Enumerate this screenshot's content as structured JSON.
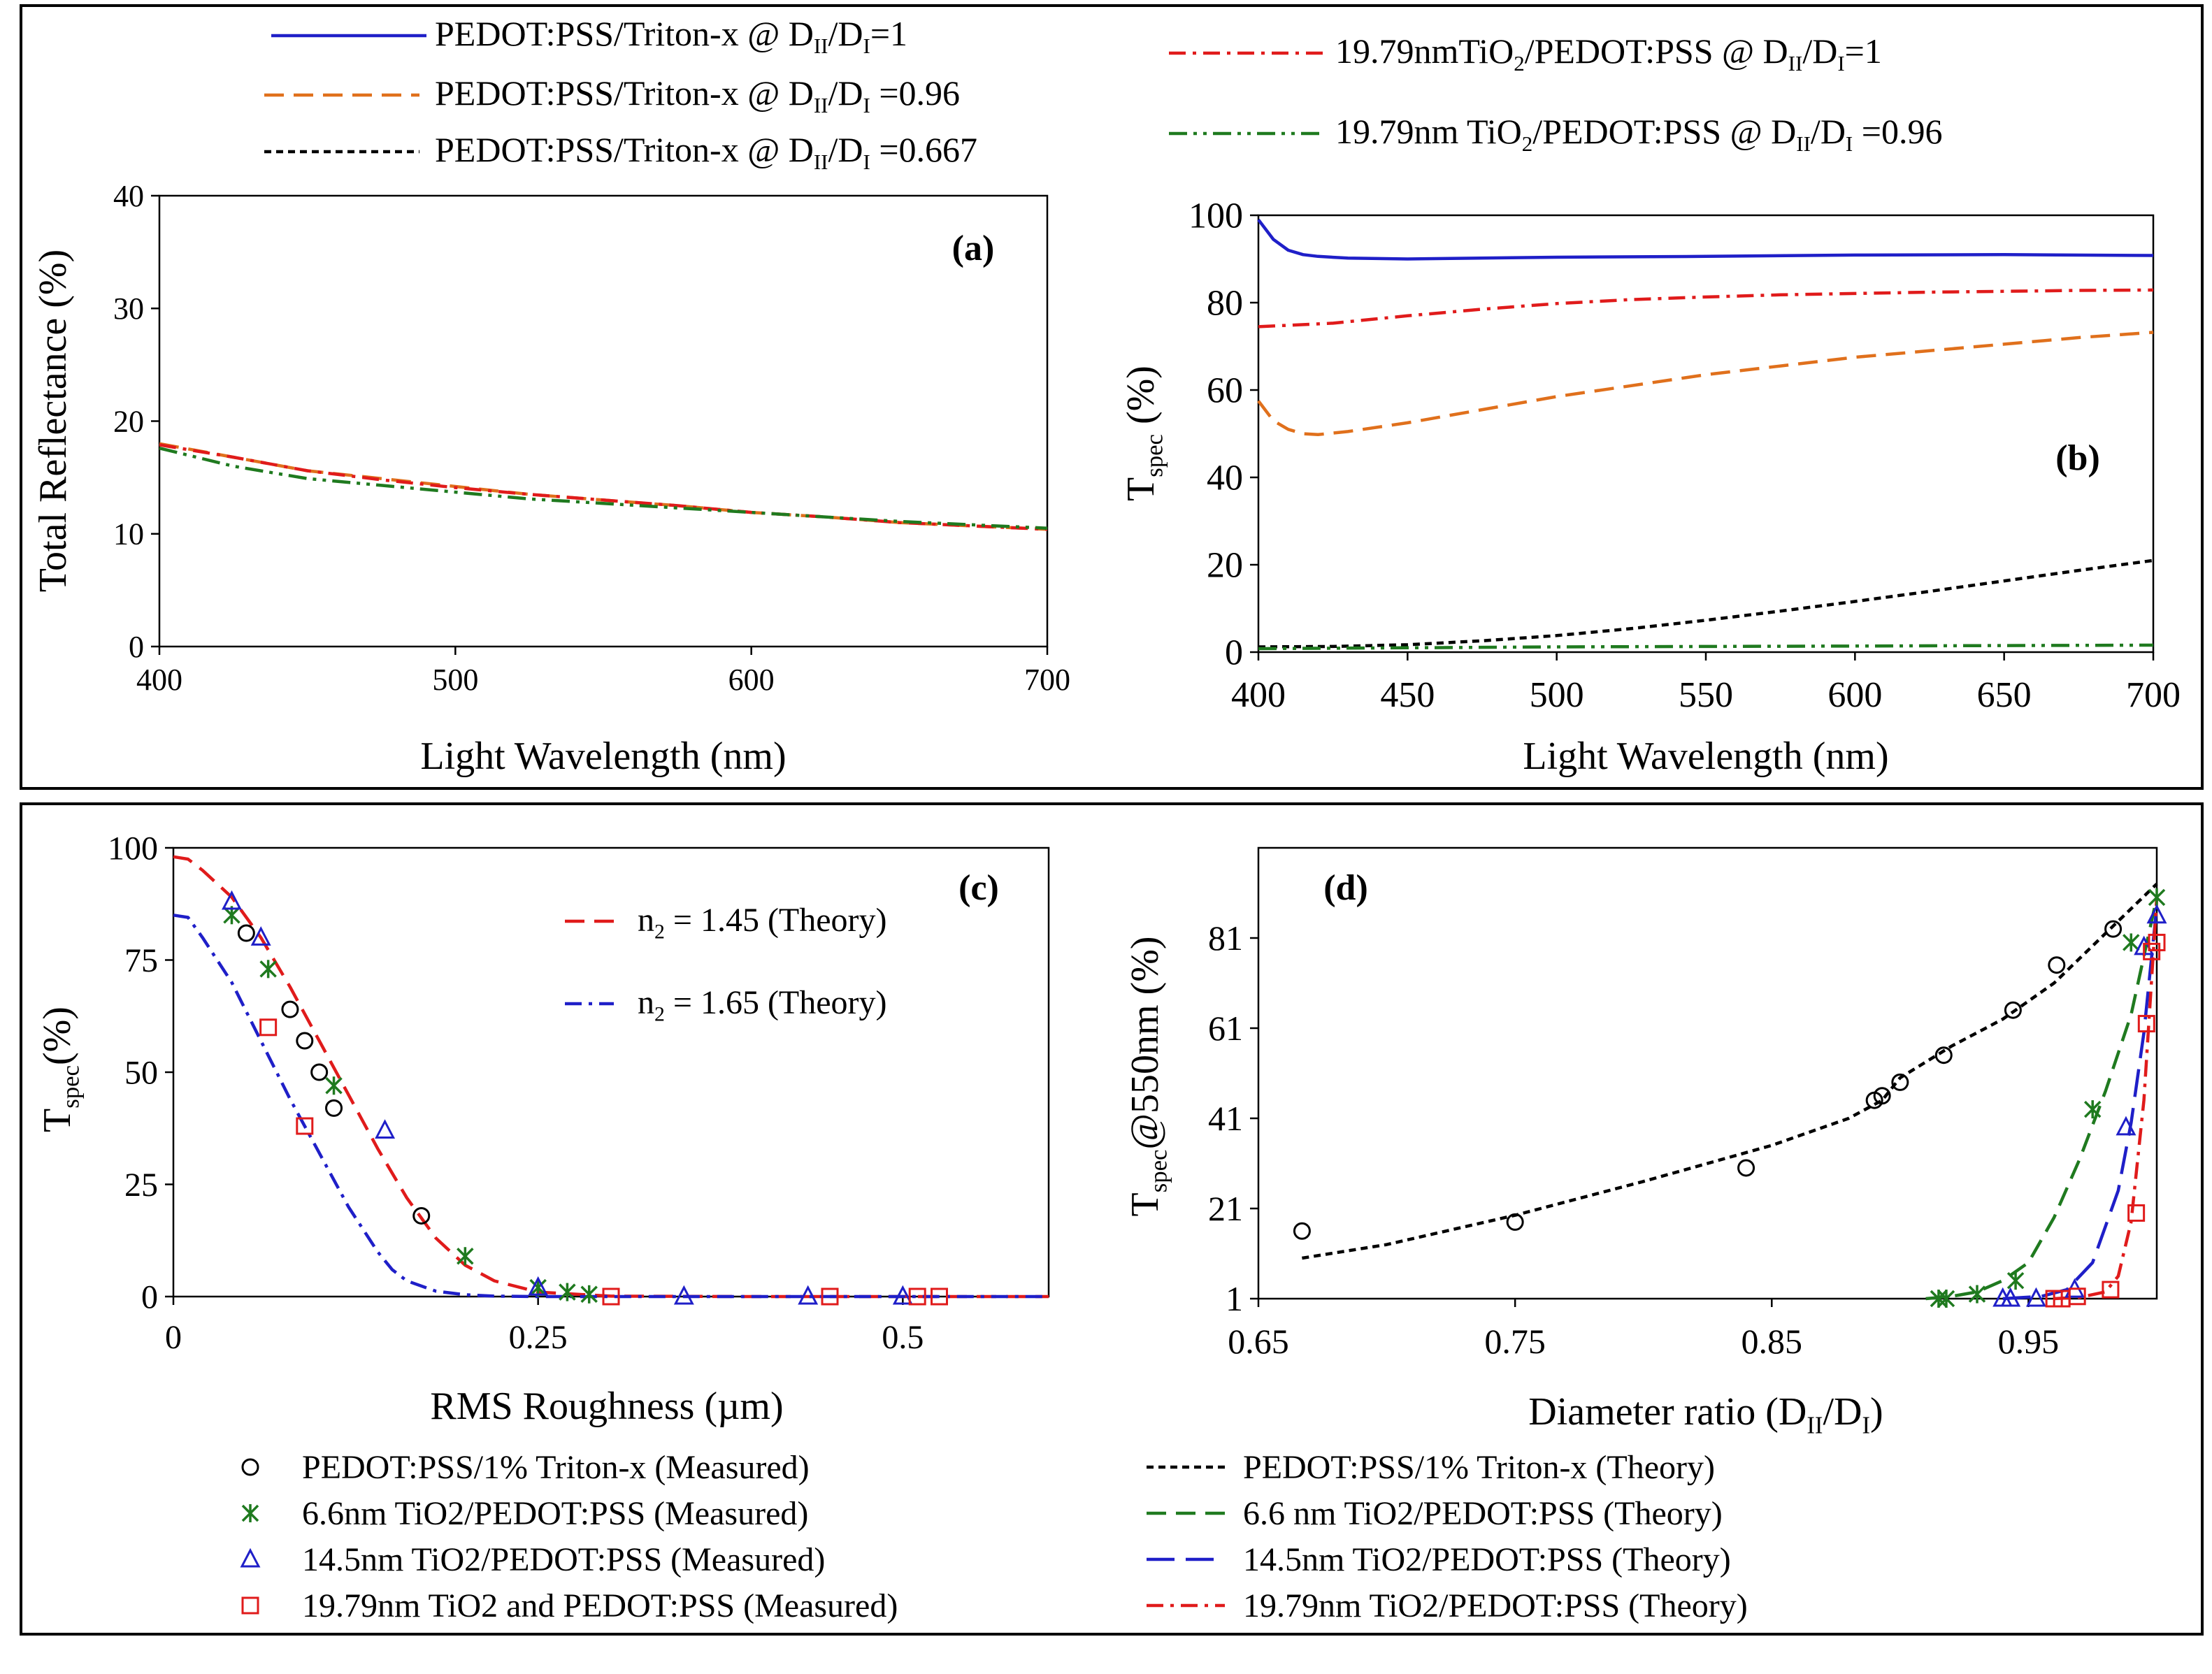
{
  "top_legend": [
    {
      "pre": "PEDOT:PSS/Triton-x @ D",
      "sub1": "II",
      "mid": "/D",
      "sub2": "I",
      "post": "=1",
      "color": "#1f1fc8",
      "dash": "solid"
    },
    {
      "pre": "PEDOT:PSS/Triton-x @ D",
      "sub1": "II",
      "mid": "/D",
      "sub2": "I",
      "post": " =0.96",
      "color": "#e0701c",
      "dash": "dash"
    },
    {
      "pre": "PEDOT:PSS/Triton-x @ D",
      "sub1": "II",
      "mid": "/D",
      "sub2": "I",
      "post": " =0.667",
      "color": "#000000",
      "dash": "shortdash"
    },
    {
      "pre": "19.79nmTiO",
      "sub0": "2",
      "pre2": "/PEDOT:PSS @ D",
      "sub1": "II",
      "mid": "/D",
      "sub2": "I",
      "post": "=1",
      "color": "#e01b1b",
      "dash": "dashdot"
    },
    {
      "pre": "19.79nm TiO",
      "sub0": "2",
      "pre2": "/PEDOT:PSS @ D",
      "sub1": "II",
      "mid": "/D",
      "sub2": "I",
      "post": " =0.96",
      "color": "#1f7a1f",
      "dash": "dashdotdot"
    }
  ],
  "bottom_legend": [
    {
      "label": "PEDOT:PSS/1% Triton-x (Measured)",
      "marker": "circle",
      "color": "#000000"
    },
    {
      "label": "6.6nm TiO2/PEDOT:PSS (Measured)",
      "marker": "star",
      "color": "#1f7a1f"
    },
    {
      "label": "14.5nm TiO2/PEDOT:PSS (Measured)",
      "marker": "triangle",
      "color": "#1f1fc8"
    },
    {
      "label": "19.79nm TiO2 and PEDOT:PSS (Measured)",
      "marker": "square",
      "color": "#e01b1b"
    },
    {
      "label": "PEDOT:PSS/1% Triton-x (Theory)",
      "line": "shortdash",
      "color": "#000000"
    },
    {
      "label": "6.6 nm TiO2/PEDOT:PSS (Theory)",
      "line": "dash",
      "color": "#1f7a1f"
    },
    {
      "label": "14.5nm TiO2/PEDOT:PSS (Theory)",
      "line": "longdash",
      "color": "#1f1fc8"
    },
    {
      "label": "19.79nm TiO2/PEDOT:PSS (Theory)",
      "line": "dashdot",
      "color": "#e01b1b"
    }
  ],
  "chart_data": [
    {
      "id": "a",
      "type": "line",
      "panel_label": "(a)",
      "xlabel": "Light Wavelength (nm)",
      "ylabel": "Total Reflectance (%)",
      "xlim": [
        400,
        700
      ],
      "ylim": [
        0,
        40
      ],
      "xticks": [
        400,
        500,
        600,
        700
      ],
      "yticks": [
        0,
        10,
        20,
        30,
        40
      ],
      "series": [
        {
          "name": "PEDOT:PSS/Triton-x @ DII/DI =0.96",
          "color": "#e0701c",
          "dash": "dash",
          "x": [
            400,
            425,
            450,
            475,
            500,
            525,
            550,
            575,
            600,
            625,
            650,
            675,
            700
          ],
          "y": [
            18.0,
            16.8,
            15.6,
            14.9,
            14.2,
            13.5,
            13.0,
            12.5,
            11.9,
            11.5,
            11.0,
            10.7,
            10.4
          ]
        },
        {
          "name": "19.79nmTiO2/PEDOT:PSS @ DII/DI=1",
          "color": "#e01b1b",
          "dash": "dashdot",
          "x": [
            400,
            425,
            450,
            475,
            500,
            525,
            550,
            575,
            600,
            625,
            650,
            675,
            700
          ],
          "y": [
            17.9,
            16.8,
            15.6,
            14.8,
            14.1,
            13.5,
            13.0,
            12.5,
            11.9,
            11.5,
            11.0,
            10.7,
            10.4
          ]
        },
        {
          "name": "19.79nm TiO2/PEDOT:PSS @ DII/DI =0.96",
          "color": "#1f7a1f",
          "dash": "dashdotdot",
          "x": [
            400,
            425,
            450,
            475,
            500,
            525,
            550,
            575,
            600,
            625,
            650,
            675,
            700
          ],
          "y": [
            17.6,
            16.0,
            14.9,
            14.3,
            13.7,
            13.1,
            12.7,
            12.3,
            11.9,
            11.5,
            11.1,
            10.8,
            10.5
          ]
        }
      ]
    },
    {
      "id": "b",
      "type": "line",
      "panel_label": "(b)",
      "xlabel": "Light Wavelength (nm)",
      "ylabel_main": "T",
      "ylabel_sub": "spec",
      "ylabel_post": " (%)",
      "xlim": [
        400,
        700
      ],
      "ylim": [
        0,
        100
      ],
      "xticks": [
        400,
        450,
        500,
        550,
        600,
        650,
        700
      ],
      "yticks": [
        0,
        20,
        40,
        60,
        80,
        100
      ],
      "series": [
        {
          "name": "PEDOT:PSS/Triton-x @ DII/DI=1",
          "color": "#1f1fc8",
          "dash": "solid",
          "x": [
            400,
            405,
            410,
            415,
            420,
            430,
            450,
            500,
            550,
            600,
            650,
            700
          ],
          "y": [
            99.0,
            94.5,
            92.0,
            91.0,
            90.6,
            90.2,
            90.0,
            90.4,
            90.6,
            90.9,
            91.0,
            90.8
          ]
        },
        {
          "name": "19.79nmTiO2/PEDOT:PSS @ DII/DI=1",
          "color": "#e01b1b",
          "dash": "dashdot",
          "x": [
            400,
            425,
            450,
            475,
            500,
            525,
            550,
            575,
            600,
            625,
            650,
            675,
            700
          ],
          "y": [
            74.5,
            75.3,
            77.0,
            78.5,
            79.8,
            80.7,
            81.3,
            81.8,
            82.1,
            82.4,
            82.6,
            82.8,
            82.9
          ]
        },
        {
          "name": "PEDOT:PSS/Triton-x @ DII/DI =0.96",
          "color": "#e0701c",
          "dash": "dash",
          "x": [
            400,
            405,
            410,
            415,
            420,
            430,
            450,
            475,
            500,
            525,
            550,
            575,
            600,
            625,
            650,
            675,
            700
          ],
          "y": [
            57.5,
            53.0,
            51.0,
            50.0,
            49.8,
            50.5,
            52.5,
            55.5,
            58.5,
            61.0,
            63.5,
            65.5,
            67.5,
            69.0,
            70.5,
            72.0,
            73.2
          ]
        },
        {
          "name": "PEDOT:PSS/Triton-x @ DII/DI =0.667",
          "color": "#000000",
          "dash": "shortdash",
          "x": [
            400,
            425,
            450,
            475,
            500,
            525,
            550,
            575,
            600,
            625,
            650,
            675,
            700
          ],
          "y": [
            1.2,
            1.3,
            1.7,
            2.6,
            3.8,
            5.4,
            7.3,
            9.4,
            11.6,
            13.9,
            16.3,
            18.7,
            21.0
          ]
        },
        {
          "name": "19.79nm TiO2/PEDOT:PSS @ DII/DI =0.96",
          "color": "#1f7a1f",
          "dash": "dashdotdot",
          "x": [
            400,
            450,
            500,
            550,
            600,
            650,
            700
          ],
          "y": [
            0.8,
            1.0,
            1.2,
            1.3,
            1.4,
            1.5,
            1.6
          ]
        }
      ]
    },
    {
      "id": "c",
      "type": "scatter",
      "panel_label": "(c)",
      "xlabel": "RMS Roughness (µm)",
      "ylabel_main": "T",
      "ylabel_sub": "spec",
      "ylabel_post": "(%)",
      "xlim": [
        0,
        0.6
      ],
      "ylim": [
        0,
        100
      ],
      "xticks": [
        0,
        0.25,
        0.5
      ],
      "xtick_labels": [
        "0",
        "0.25",
        "0.5"
      ],
      "yticks": [
        0,
        25,
        50,
        75,
        100
      ],
      "legend": [
        {
          "pre": "n",
          "sub": "2",
          "post": " = 1.45 (Theory)",
          "color": "#e01b1b",
          "dash": "dash"
        },
        {
          "pre": "n",
          "sub": "2",
          "post": " = 1.65 (Theory)",
          "color": "#1f1fc8",
          "dash": "dashdot"
        }
      ],
      "lines": [
        {
          "name": "n2 = 1.45 (Theory)",
          "color": "#e01b1b",
          "dash": "dash",
          "x": [
            0,
            0.01,
            0.02,
            0.04,
            0.06,
            0.08,
            0.1,
            0.12,
            0.14,
            0.16,
            0.18,
            0.2,
            0.22,
            0.25,
            0.3,
            0.4,
            0.5,
            0.6
          ],
          "y": [
            98,
            97.5,
            95,
            89,
            80,
            69,
            57,
            45,
            33,
            22,
            13,
            7,
            3.5,
            1,
            0.1,
            0,
            0,
            0
          ]
        },
        {
          "name": "n2 = 1.65 (Theory)",
          "color": "#1f1fc8",
          "dash": "dashdot",
          "x": [
            0,
            0.01,
            0.02,
            0.04,
            0.06,
            0.08,
            0.1,
            0.12,
            0.14,
            0.15,
            0.16,
            0.18,
            0.2,
            0.22,
            0.25,
            0.3,
            0.6
          ],
          "y": [
            85,
            84.5,
            80,
            70,
            57,
            44,
            32,
            20,
            10,
            6,
            3.5,
            1.2,
            0.4,
            0.1,
            0,
            0,
            0
          ]
        }
      ],
      "points": [
        {
          "series": "PEDOT:PSS/1% Triton-x (Measured)",
          "marker": "circle",
          "color": "#000000",
          "x": [
            0.05,
            0.08,
            0.09,
            0.1,
            0.11,
            0.17
          ],
          "y": [
            81,
            64,
            57,
            50,
            42,
            18
          ]
        },
        {
          "series": "6.6nm TiO2/PEDOT:PSS (Measured)",
          "marker": "star",
          "color": "#1f7a1f",
          "x": [
            0.04,
            0.065,
            0.11,
            0.2,
            0.25,
            0.27,
            0.285
          ],
          "y": [
            85,
            73,
            47,
            9,
            2,
            1,
            0.5
          ]
        },
        {
          "series": "14.5nm TiO2/PEDOT:PSS (Measured)",
          "marker": "triangle",
          "color": "#1f1fc8",
          "x": [
            0.04,
            0.06,
            0.145,
            0.25,
            0.35,
            0.435,
            0.5
          ],
          "y": [
            88,
            80,
            37,
            2,
            0,
            0,
            0
          ]
        },
        {
          "series": "19.79nm TiO2 and PEDOT:PSS (Measured)",
          "marker": "square",
          "color": "#e01b1b",
          "x": [
            0.065,
            0.09,
            0.3,
            0.45,
            0.51,
            0.525
          ],
          "y": [
            60,
            38,
            0,
            0,
            0,
            0
          ]
        }
      ]
    },
    {
      "id": "d",
      "type": "scatter",
      "panel_label": "(d)",
      "xlabel": "Diameter ratio (D",
      "xlabel_sub1": "II",
      "xlabel_mid": "/D",
      "xlabel_sub2": "I",
      "xlabel_post": ")",
      "ylabel_main": "T",
      "ylabel_sub": "spec",
      "ylabel_post": "@550nm (%)",
      "xlim": [
        0.65,
        1.0
      ],
      "ylim": [
        1,
        101
      ],
      "xticks": [
        0.65,
        0.75,
        0.85,
        0.95
      ],
      "xtick_labels": [
        "0.65",
        "0.75",
        "0.85",
        "0.95"
      ],
      "yticks": [
        1,
        21,
        41,
        61,
        81
      ],
      "lines": [
        {
          "name": "PEDOT:PSS/1% Triton-x (Theory)",
          "color": "#000000",
          "dash": "shortdash",
          "x": [
            0.667,
            0.7,
            0.75,
            0.8,
            0.85,
            0.88,
            0.893,
            0.9,
            0.92,
            0.94,
            0.96,
            0.98,
            1.0
          ],
          "y": [
            10,
            13,
            19.5,
            27,
            35,
            41,
            45,
            50,
            57,
            63,
            71,
            82,
            93
          ]
        },
        {
          "name": "6.6 nm TiO2/PEDOT:PSS (Theory)",
          "color": "#1f7a1f",
          "dash": "dash",
          "x": [
            0.91,
            0.92,
            0.93,
            0.94,
            0.95,
            0.96,
            0.97,
            0.98,
            0.99,
            1.0
          ],
          "y": [
            1,
            1.5,
            2.5,
            5,
            9,
            19,
            32,
            47,
            64,
            90
          ]
        },
        {
          "name": "14.5nm TiO2/PEDOT:PSS (Theory)",
          "color": "#1f1fc8",
          "dash": "longdash",
          "x": [
            0.94,
            0.955,
            0.965,
            0.975,
            0.985,
            0.99,
            0.995,
            1.0
          ],
          "y": [
            1,
            1.5,
            3,
            9,
            25,
            40,
            60,
            88
          ]
        },
        {
          "name": "19.79nm TiO2/PEDOT:PSS (Theory)",
          "color": "#e01b1b",
          "dash": "dashdot",
          "x": [
            0.96,
            0.97,
            0.98,
            0.985,
            0.99,
            0.995,
            0.998,
            1.0
          ],
          "y": [
            1,
            1.3,
            2.5,
            6,
            18,
            45,
            72,
            90
          ]
        }
      ],
      "points": [
        {
          "series": "PEDOT:PSS/1% Triton-x (Measured)",
          "marker": "circle",
          "color": "#000000",
          "x": [
            0.667,
            0.75,
            0.84,
            0.89,
            0.893,
            0.9,
            0.917,
            0.944,
            0.961,
            0.983
          ],
          "y": [
            16,
            18,
            30,
            45,
            46,
            49,
            55,
            65,
            75,
            83
          ]
        },
        {
          "series": "6.6nm TiO2/PEDOT:PSS (Measured)",
          "marker": "star",
          "color": "#1f7a1f",
          "x": [
            0.915,
            0.918,
            0.93,
            0.945,
            0.975,
            0.99,
            1.0
          ],
          "y": [
            1,
            1,
            2,
            5,
            43,
            80,
            90
          ]
        },
        {
          "series": "14.5nm TiO2/PEDOT:PSS (Measured)",
          "marker": "triangle",
          "color": "#1f1fc8",
          "x": [
            0.94,
            0.943,
            0.953,
            0.968,
            0.988,
            0.995,
            1.0
          ],
          "y": [
            1,
            1,
            1,
            3,
            39,
            79,
            86
          ]
        },
        {
          "series": "19.79nm TiO2 and PEDOT:PSS (Measured)",
          "marker": "square",
          "color": "#e01b1b",
          "x": [
            0.96,
            0.963,
            0.969,
            0.982,
            0.992,
            0.996,
            0.998,
            1.0
          ],
          "y": [
            1,
            1,
            1.5,
            3,
            20,
            62,
            78,
            80
          ]
        }
      ]
    }
  ]
}
